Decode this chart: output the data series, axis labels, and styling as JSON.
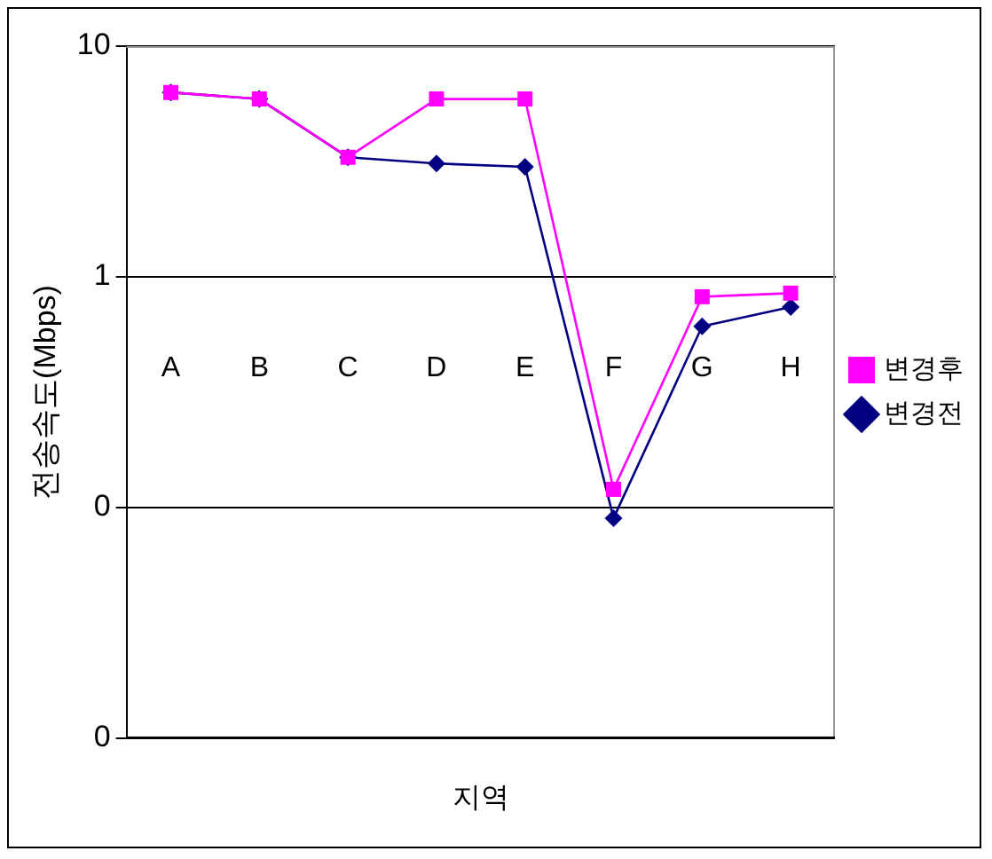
{
  "chart_data": {
    "type": "line",
    "xlabel": "지역",
    "ylabel": "전송속도(Mbps)",
    "categories": [
      "A",
      "B",
      "C",
      "D",
      "E",
      "F",
      "G",
      "H"
    ],
    "series": [
      {
        "name": "변경전",
        "color": "#000080",
        "marker": "diamond",
        "values": [
          6.3,
          5.9,
          3.3,
          3.1,
          3.0,
          0.09,
          0.61,
          0.74
        ]
      },
      {
        "name": "변경후",
        "color": "#ff00ff",
        "marker": "square",
        "values": [
          6.3,
          5.9,
          3.3,
          5.9,
          5.9,
          0.12,
          0.82,
          0.85
        ]
      }
    ],
    "log": true,
    "ylim": [
      0.01,
      10
    ],
    "yticks": [
      10,
      1,
      {
        "value": 0.1,
        "label": "0"
      },
      {
        "value": 0.01,
        "label": "0"
      }
    ],
    "grid": "y",
    "legend": "right",
    "line_style": "solid"
  }
}
